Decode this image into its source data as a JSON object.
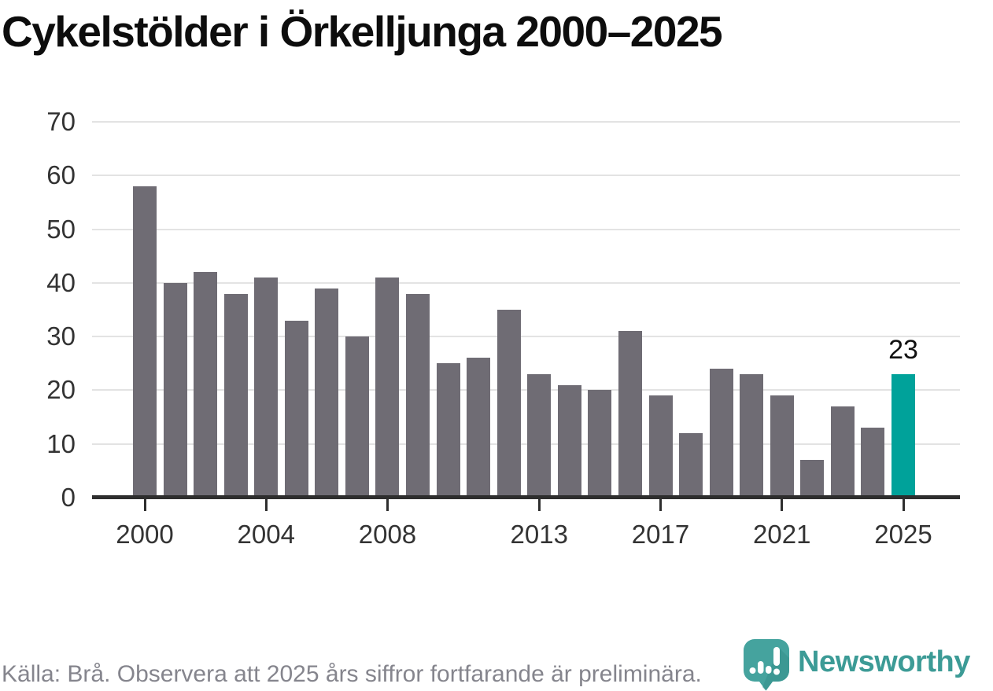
{
  "title": "Cykelstölder i Örkelljunga 2000–2025",
  "source_note": "Källa: Brå. Observera att 2025 års siffror fortfarande är preliminära.",
  "logo": {
    "name": "Newsworthy"
  },
  "colors": {
    "bar": "#6f6c74",
    "highlight": "#00a29a",
    "grid": "#e3e3e3",
    "axis": "#2e2e2e",
    "tick_label": "#333333",
    "source": "#85858d",
    "logo_teal": "#45a39e",
    "logo_shadow": "#35908b",
    "logo_text": "#3c9b96"
  },
  "chart_data": {
    "type": "bar",
    "title": "Cykelstölder i Örkelljunga 2000–2025",
    "xlabel": "",
    "ylabel": "",
    "x": [
      2000,
      2001,
      2002,
      2003,
      2004,
      2005,
      2006,
      2007,
      2008,
      2009,
      2010,
      2011,
      2012,
      2013,
      2014,
      2015,
      2016,
      2017,
      2018,
      2019,
      2020,
      2021,
      2022,
      2023,
      2024,
      2025
    ],
    "values": [
      58,
      40,
      42,
      38,
      41,
      33,
      39,
      30,
      41,
      38,
      25,
      26,
      35,
      23,
      21,
      20,
      31,
      19,
      12,
      24,
      23,
      19,
      7,
      17,
      13,
      23
    ],
    "highlight_year": 2025,
    "highlight_label": "23",
    "y_ticks": [
      0,
      10,
      20,
      30,
      40,
      50,
      60,
      70
    ],
    "x_ticks": [
      2000,
      2004,
      2008,
      2013,
      2017,
      2021,
      2025
    ],
    "ylim": [
      0,
      70
    ],
    "grid": true,
    "legend": null
  }
}
